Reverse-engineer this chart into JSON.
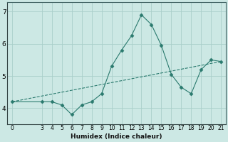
{
  "xlabel": "Humidex (Indice chaleur)",
  "background_color": "#cce8e4",
  "line_color": "#2a7a6e",
  "grid_color": "#aacfca",
  "x_ticks": [
    0,
    3,
    4,
    5,
    6,
    7,
    8,
    9,
    10,
    11,
    12,
    13,
    14,
    15,
    16,
    17,
    18,
    19,
    20,
    21
  ],
  "curve_x": [
    0,
    3,
    4,
    5,
    6,
    7,
    8,
    9,
    10,
    11,
    12,
    13,
    14,
    15,
    16,
    17,
    18,
    19,
    20,
    21
  ],
  "curve_y": [
    4.2,
    4.2,
    4.2,
    4.1,
    3.8,
    4.1,
    4.2,
    4.45,
    5.3,
    5.8,
    6.25,
    6.9,
    6.6,
    5.95,
    5.05,
    4.65,
    4.45,
    5.2,
    5.5,
    5.45
  ],
  "trend_x": [
    0,
    21
  ],
  "trend_y": [
    4.2,
    5.45
  ],
  "ylim": [
    3.5,
    7.3
  ],
  "xlim": [
    -0.5,
    21.5
  ],
  "yticks": [
    4,
    5,
    6,
    7
  ],
  "marker": "D",
  "marker_size": 2.5
}
